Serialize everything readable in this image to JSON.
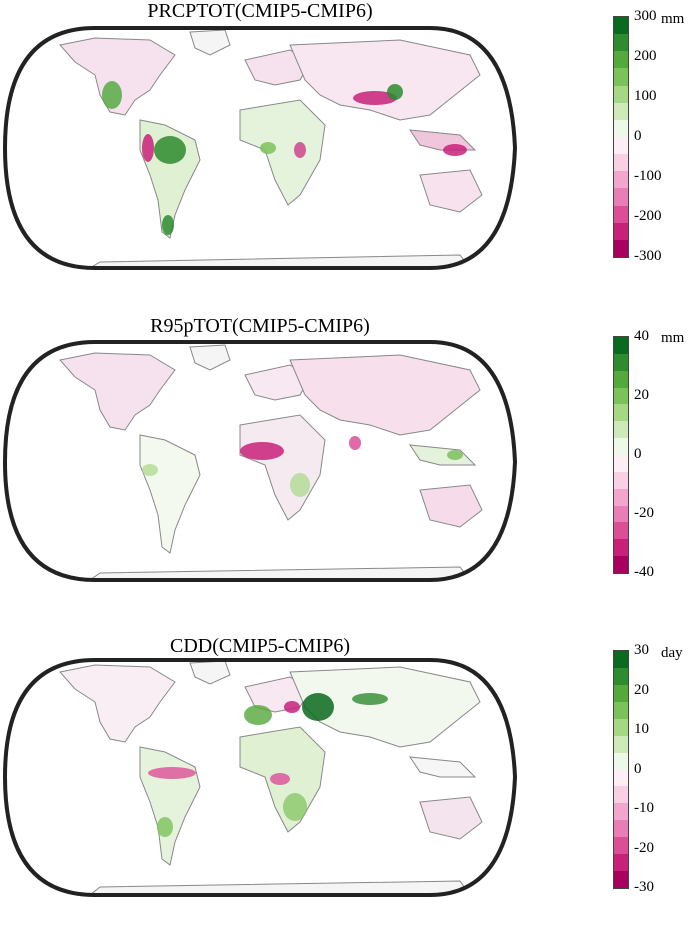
{
  "panels": [
    {
      "title": "PRCPTOT(CMIP5-CMIP6)",
      "unit": "mm",
      "ticks": [
        "300",
        "200",
        "100",
        "0",
        "-100",
        "-200",
        "-300"
      ],
      "range": [
        -300,
        300
      ]
    },
    {
      "title": "R95pTOT(CMIP5-CMIP6)",
      "unit": "mm",
      "ticks": [
        "40",
        "20",
        "0",
        "-20",
        "-40"
      ],
      "range": [
        -40,
        40
      ]
    },
    {
      "title": "CDD(CMIP5-CMIP6)",
      "unit": "day",
      "ticks": [
        "30",
        "20",
        "10",
        "0",
        "-10",
        "-20",
        "-30"
      ],
      "range": [
        -30,
        30
      ]
    }
  ],
  "colorbar_colors": [
    "#0a6a1f",
    "#2e8b2e",
    "#55a83c",
    "#7cc25a",
    "#a6d884",
    "#cdeab8",
    "#eef8e8",
    "#fdeef6",
    "#f9cfe4",
    "#f3a6cd",
    "#e97db5",
    "#dc4f98",
    "#c8217a",
    "#a8005e"
  ]
}
